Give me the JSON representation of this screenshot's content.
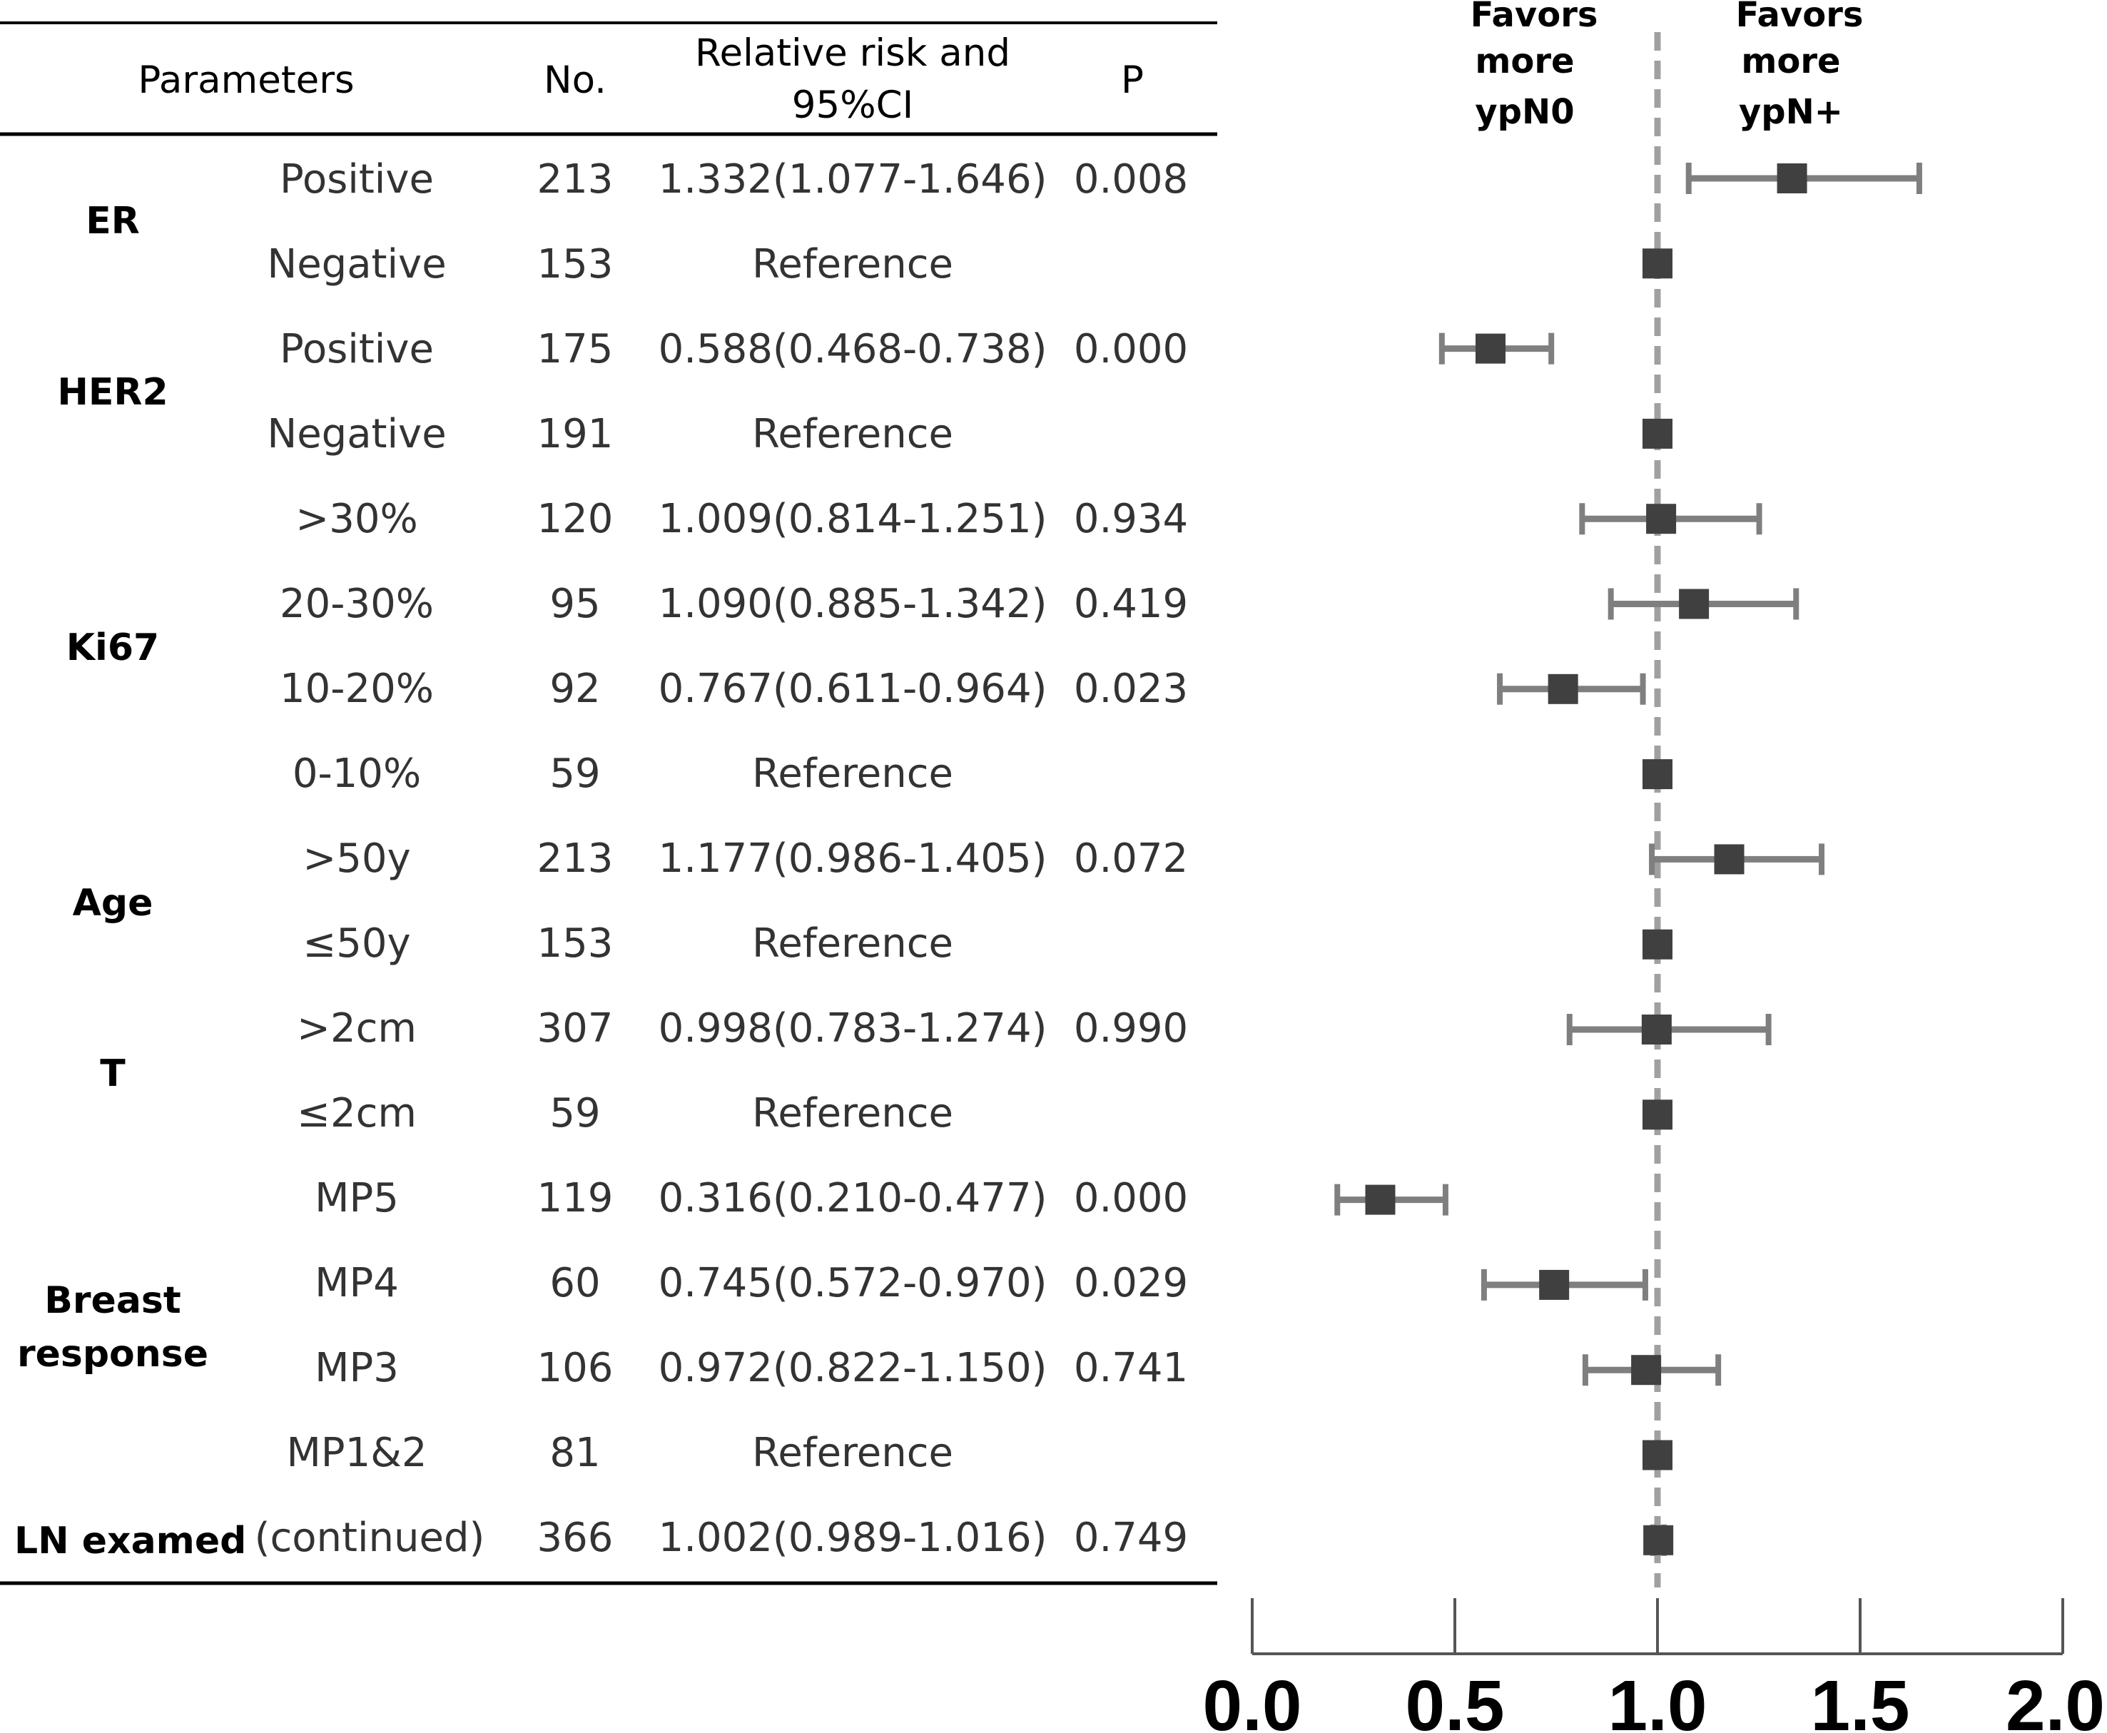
{
  "table": {
    "headers": {
      "parameters": "Parameters",
      "no": "No.",
      "rr_line1": "Relative risk and",
      "rr_line2": "95%CI",
      "p": "P"
    },
    "groups": [
      {
        "label_lines": [
          "ER"
        ]
      },
      {
        "label_lines": [
          "HER2"
        ]
      },
      {
        "label_lines": [
          "Ki67"
        ]
      },
      {
        "label_lines": [
          "Age"
        ]
      },
      {
        "label_lines": [
          "T"
        ]
      },
      {
        "label_lines": [
          "Breast",
          "response"
        ]
      },
      {
        "label_lines": [
          "LN examed"
        ]
      }
    ],
    "rows": [
      {
        "level": "Positive",
        "no": "213",
        "rr": "1.332(1.077-1.646)",
        "p": "0.008"
      },
      {
        "level": "Negative",
        "no": "153",
        "rr": "Reference",
        "p": ""
      },
      {
        "level": "Positive",
        "no": "175",
        "rr": "0.588(0.468-0.738)",
        "p": "0.000"
      },
      {
        "level": "Negative",
        "no": "191",
        "rr": "Reference",
        "p": ""
      },
      {
        "level": ">30%",
        "no": "120",
        "rr": "1.009(0.814-1.251)",
        "p": "0.934"
      },
      {
        "level": "20-30%",
        "no": "95",
        "rr": "1.090(0.885-1.342)",
        "p": "0.419"
      },
      {
        "level": "10-20%",
        "no": "92",
        "rr": "0.767(0.611-0.964)",
        "p": "0.023"
      },
      {
        "level": "0-10%",
        "no": "59",
        "rr": "Reference",
        "p": ""
      },
      {
        "level": ">50y",
        "no": "213",
        "rr": "1.177(0.986-1.405)",
        "p": "0.072"
      },
      {
        "level": "≤50y",
        "no": "153",
        "rr": "Reference",
        "p": ""
      },
      {
        "level": ">2cm",
        "no": "307",
        "rr": "0.998(0.783-1.274)",
        "p": "0.990"
      },
      {
        "level": "≤2cm",
        "no": "59",
        "rr": "Reference",
        "p": ""
      },
      {
        "level": "MP5",
        "no": "119",
        "rr": "0.316(0.210-0.477)",
        "p": "0.000"
      },
      {
        "level": "MP4",
        "no": "60",
        "rr": "0.745(0.572-0.970)",
        "p": "0.029"
      },
      {
        "level": "MP3",
        "no": "106",
        "rr": "0.972(0.822-1.150)",
        "p": "0.741"
      },
      {
        "level": "MP1&2",
        "no": "81",
        "rr": "Reference",
        "p": ""
      },
      {
        "level": "(continued)",
        "no": "366",
        "rr": "1.002(0.989-1.016)",
        "p": "0.749"
      }
    ]
  },
  "chart_data": {
    "type": "forest",
    "xlim": [
      0.0,
      2.0
    ],
    "xticks": [
      "0.0",
      "0.5",
      "1.0",
      "1.5",
      "2.0"
    ],
    "reference_line": 1.0,
    "annotations": {
      "left": [
        "Favors",
        "more",
        "ypN0"
      ],
      "right": [
        "Favors",
        "more",
        "ypN+"
      ]
    },
    "points": [
      {
        "rr": 1.332,
        "lo": 1.077,
        "hi": 1.646
      },
      {
        "rr": 1.0,
        "lo": null,
        "hi": null
      },
      {
        "rr": 0.588,
        "lo": 0.468,
        "hi": 0.738
      },
      {
        "rr": 1.0,
        "lo": null,
        "hi": null
      },
      {
        "rr": 1.009,
        "lo": 0.814,
        "hi": 1.251
      },
      {
        "rr": 1.09,
        "lo": 0.885,
        "hi": 1.342
      },
      {
        "rr": 0.767,
        "lo": 0.611,
        "hi": 0.964
      },
      {
        "rr": 1.0,
        "lo": null,
        "hi": null
      },
      {
        "rr": 1.177,
        "lo": 0.986,
        "hi": 1.405
      },
      {
        "rr": 1.0,
        "lo": null,
        "hi": null
      },
      {
        "rr": 0.998,
        "lo": 0.783,
        "hi": 1.274
      },
      {
        "rr": 1.0,
        "lo": null,
        "hi": null
      },
      {
        "rr": 0.316,
        "lo": 0.21,
        "hi": 0.477
      },
      {
        "rr": 0.745,
        "lo": 0.572,
        "hi": 0.97
      },
      {
        "rr": 0.972,
        "lo": 0.822,
        "hi": 1.15
      },
      {
        "rr": 1.0,
        "lo": null,
        "hi": null
      },
      {
        "rr": 1.002,
        "lo": 0.989,
        "hi": 1.016
      }
    ]
  }
}
